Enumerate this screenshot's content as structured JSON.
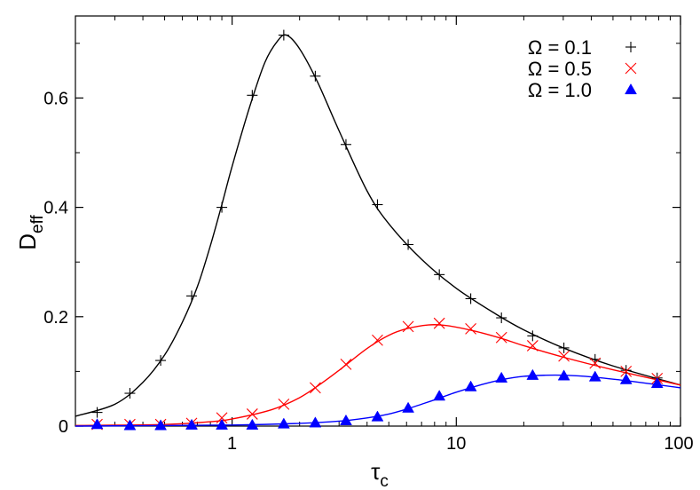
{
  "chart_data": {
    "type": "scatter",
    "title": "",
    "xlabel": "τ",
    "xlabel_sub": "c",
    "ylabel": "D",
    "ylabel_sub": "eff",
    "xscale": "log",
    "xlim": [
      0.2,
      100
    ],
    "ylim": [
      0,
      0.75
    ],
    "xticks": [
      {
        "value": 1,
        "label": "1"
      },
      {
        "value": 10,
        "label": "10"
      },
      {
        "value": 100,
        "label": "100"
      }
    ],
    "yticks": [
      {
        "value": 0,
        "label": "0"
      },
      {
        "value": 0.2,
        "label": "0.2"
      },
      {
        "value": 0.4,
        "label": "0.4"
      },
      {
        "value": 0.6,
        "label": "0.6"
      }
    ],
    "grid": false,
    "legend_position": "top-right",
    "series": [
      {
        "name": "Ω = 0.1",
        "marker": "plus",
        "color": "#000000",
        "points": [
          [
            0.25,
            0.025
          ],
          [
            0.35,
            0.06
          ],
          [
            0.48,
            0.12
          ],
          [
            0.66,
            0.238
          ],
          [
            0.9,
            0.4
          ],
          [
            1.23,
            0.605
          ],
          [
            1.7,
            0.715
          ],
          [
            2.35,
            0.64
          ],
          [
            3.22,
            0.515
          ],
          [
            4.45,
            0.405
          ],
          [
            6.1,
            0.332
          ],
          [
            8.4,
            0.277
          ],
          [
            11.6,
            0.233
          ],
          [
            15.9,
            0.198
          ],
          [
            21.9,
            0.165
          ],
          [
            30.2,
            0.143
          ],
          [
            41.6,
            0.122
          ],
          [
            57.2,
            0.102
          ],
          [
            78.7,
            0.088
          ]
        ],
        "curve": [
          [
            0.2,
            0.018
          ],
          [
            0.3,
            0.04
          ],
          [
            0.4,
            0.08
          ],
          [
            0.5,
            0.13
          ],
          [
            0.6,
            0.19
          ],
          [
            0.7,
            0.255
          ],
          [
            0.8,
            0.33
          ],
          [
            0.9,
            0.405
          ],
          [
            1.0,
            0.475
          ],
          [
            1.2,
            0.585
          ],
          [
            1.4,
            0.665
          ],
          [
            1.6,
            0.705
          ],
          [
            1.75,
            0.715
          ],
          [
            2.0,
            0.69
          ],
          [
            2.4,
            0.63
          ],
          [
            3.0,
            0.54
          ],
          [
            4.0,
            0.43
          ],
          [
            5.0,
            0.37
          ],
          [
            7.0,
            0.305
          ],
          [
            10.0,
            0.252
          ],
          [
            15.0,
            0.205
          ],
          [
            20.0,
            0.176
          ],
          [
            30.0,
            0.143
          ],
          [
            50.0,
            0.11
          ],
          [
            100.0,
            0.075
          ]
        ]
      },
      {
        "name": "Ω = 0.5",
        "marker": "cross",
        "color": "#ff0000",
        "points": [
          [
            0.25,
            0.003
          ],
          [
            0.35,
            0.003
          ],
          [
            0.48,
            0.003
          ],
          [
            0.66,
            0.005
          ],
          [
            0.9,
            0.015
          ],
          [
            1.23,
            0.022
          ],
          [
            1.7,
            0.04
          ],
          [
            2.35,
            0.07
          ],
          [
            3.22,
            0.113
          ],
          [
            4.45,
            0.157
          ],
          [
            6.1,
            0.182
          ],
          [
            8.4,
            0.188
          ],
          [
            11.6,
            0.178
          ],
          [
            15.9,
            0.162
          ],
          [
            21.9,
            0.147
          ],
          [
            30.2,
            0.128
          ],
          [
            41.6,
            0.115
          ],
          [
            57.2,
            0.1
          ],
          [
            78.7,
            0.087
          ]
        ],
        "curve": [
          [
            0.2,
            0.001
          ],
          [
            0.5,
            0.003
          ],
          [
            0.8,
            0.008
          ],
          [
            1.0,
            0.013
          ],
          [
            1.5,
            0.03
          ],
          [
            2.0,
            0.052
          ],
          [
            2.5,
            0.078
          ],
          [
            3.0,
            0.102
          ],
          [
            4.0,
            0.142
          ],
          [
            5.0,
            0.166
          ],
          [
            6.0,
            0.178
          ],
          [
            7.5,
            0.185
          ],
          [
            9.0,
            0.184
          ],
          [
            12.0,
            0.174
          ],
          [
            16.0,
            0.16
          ],
          [
            20.0,
            0.147
          ],
          [
            30.0,
            0.126
          ],
          [
            50.0,
            0.103
          ],
          [
            100.0,
            0.075
          ]
        ]
      },
      {
        "name": "Ω = 1.0",
        "marker": "triangle",
        "color": "#0000ff",
        "points": [
          [
            0.25,
            0.003
          ],
          [
            0.35,
            0.001
          ],
          [
            0.48,
            0.001
          ],
          [
            0.66,
            0.002
          ],
          [
            0.9,
            0.002
          ],
          [
            1.23,
            0.002
          ],
          [
            1.7,
            0.004
          ],
          [
            2.35,
            0.006
          ],
          [
            3.22,
            0.01
          ],
          [
            4.45,
            0.017
          ],
          [
            6.1,
            0.033
          ],
          [
            8.4,
            0.055
          ],
          [
            11.6,
            0.072
          ],
          [
            15.9,
            0.088
          ],
          [
            21.9,
            0.093
          ],
          [
            30.2,
            0.092
          ],
          [
            41.6,
            0.09
          ],
          [
            57.2,
            0.085
          ],
          [
            78.7,
            0.078
          ]
        ],
        "curve": [
          [
            0.2,
            0.0
          ],
          [
            1.0,
            0.002
          ],
          [
            2.0,
            0.005
          ],
          [
            3.0,
            0.009
          ],
          [
            4.0,
            0.015
          ],
          [
            5.0,
            0.022
          ],
          [
            6.0,
            0.031
          ],
          [
            7.0,
            0.04
          ],
          [
            8.0,
            0.048
          ],
          [
            10.0,
            0.062
          ],
          [
            13.0,
            0.076
          ],
          [
            16.0,
            0.085
          ],
          [
            20.0,
            0.091
          ],
          [
            25.0,
            0.093
          ],
          [
            30.0,
            0.093
          ],
          [
            40.0,
            0.09
          ],
          [
            60.0,
            0.082
          ],
          [
            100.0,
            0.07
          ]
        ]
      }
    ]
  }
}
